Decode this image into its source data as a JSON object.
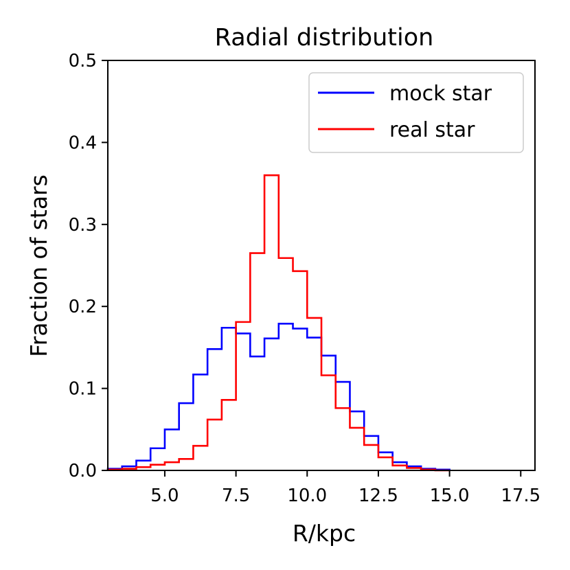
{
  "chart_data": {
    "type": "step-histogram",
    "title": "Radial distribution",
    "xlabel": "R/kpc",
    "ylabel": "Fraction of stars",
    "xlim": [
      3.0,
      18.0
    ],
    "ylim": [
      0.0,
      0.5
    ],
    "xticks": [
      5.0,
      7.5,
      10.0,
      12.5,
      15.0,
      17.5
    ],
    "xtick_labels": [
      "5.0",
      "7.5",
      "10.0",
      "12.5",
      "15.0",
      "17.5"
    ],
    "yticks": [
      0.0,
      0.1,
      0.2,
      0.3,
      0.4,
      0.5
    ],
    "ytick_labels": [
      "0.0",
      "0.1",
      "0.2",
      "0.3",
      "0.4",
      "0.5"
    ],
    "grid": false,
    "legend_position": "top-right",
    "bin_edges": [
      3.0,
      3.5,
      4.0,
      4.5,
      5.0,
      5.5,
      6.0,
      6.5,
      7.0,
      7.5,
      8.0,
      8.5,
      9.0,
      9.5,
      10.0,
      10.5,
      11.0,
      11.5,
      12.0,
      12.5,
      13.0,
      13.5,
      14.0,
      14.5,
      15.0
    ],
    "series": [
      {
        "name": "mock star",
        "color": "#0000ff",
        "values": [
          0.002,
          0.005,
          0.012,
          0.027,
          0.05,
          0.082,
          0.117,
          0.148,
          0.174,
          0.167,
          0.139,
          0.161,
          0.179,
          0.173,
          0.162,
          0.14,
          0.108,
          0.072,
          0.042,
          0.022,
          0.01,
          0.005,
          0.002,
          0.001
        ]
      },
      {
        "name": "real star",
        "color": "#ff0000",
        "values": [
          0.001,
          0.002,
          0.004,
          0.007,
          0.01,
          0.014,
          0.03,
          0.062,
          0.086,
          0.181,
          0.265,
          0.36,
          0.259,
          0.243,
          0.186,
          0.116,
          0.076,
          0.052,
          0.031,
          0.016,
          0.006,
          0.003,
          0.001,
          0.0
        ]
      }
    ]
  }
}
